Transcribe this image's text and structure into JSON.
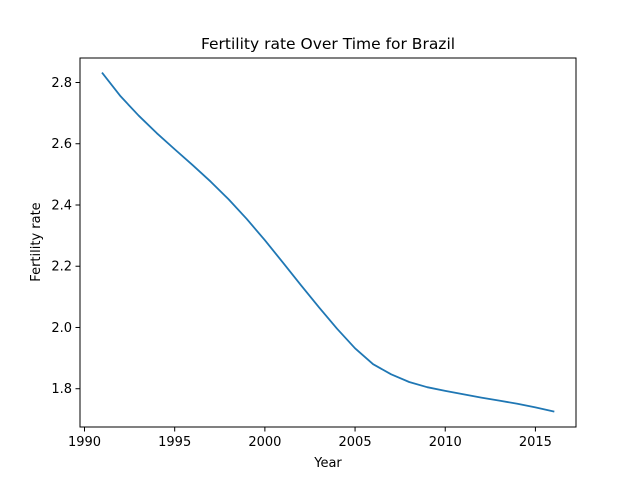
{
  "chart_data": {
    "type": "line",
    "title": "Fertility rate Over Time for Brazil",
    "xlabel": "Year",
    "ylabel": "Fertility rate",
    "xlim": [
      1989.75,
      2017.25
    ],
    "ylim": [
      1.675,
      2.88
    ],
    "xticks": [
      1990,
      1995,
      2000,
      2005,
      2010,
      2015
    ],
    "yticks": [
      1.8,
      2.0,
      2.2,
      2.4,
      2.6,
      2.8
    ],
    "xtick_labels": [
      "1990",
      "1995",
      "2000",
      "2005",
      "2010",
      "2015"
    ],
    "ytick_labels": [
      "1.8",
      "2.0",
      "2.2",
      "2.4",
      "2.6",
      "2.8"
    ],
    "grid": false,
    "legend": "none",
    "series": [
      {
        "color": "#1f77b4",
        "x": [
          1991,
          1992,
          1993,
          1994,
          1995,
          1996,
          1997,
          1998,
          1999,
          2000,
          2001,
          2002,
          2003,
          2004,
          2005,
          2006,
          2007,
          2008,
          2009,
          2010,
          2011,
          2012,
          2013,
          2014,
          2015,
          2016
        ],
        "y": [
          2.83,
          2.755,
          2.692,
          2.635,
          2.582,
          2.53,
          2.476,
          2.418,
          2.354,
          2.285,
          2.212,
          2.138,
          2.066,
          1.996,
          1.932,
          1.88,
          1.847,
          1.822,
          1.805,
          1.793,
          1.782,
          1.771,
          1.761,
          1.751,
          1.739,
          1.726
        ]
      }
    ]
  }
}
